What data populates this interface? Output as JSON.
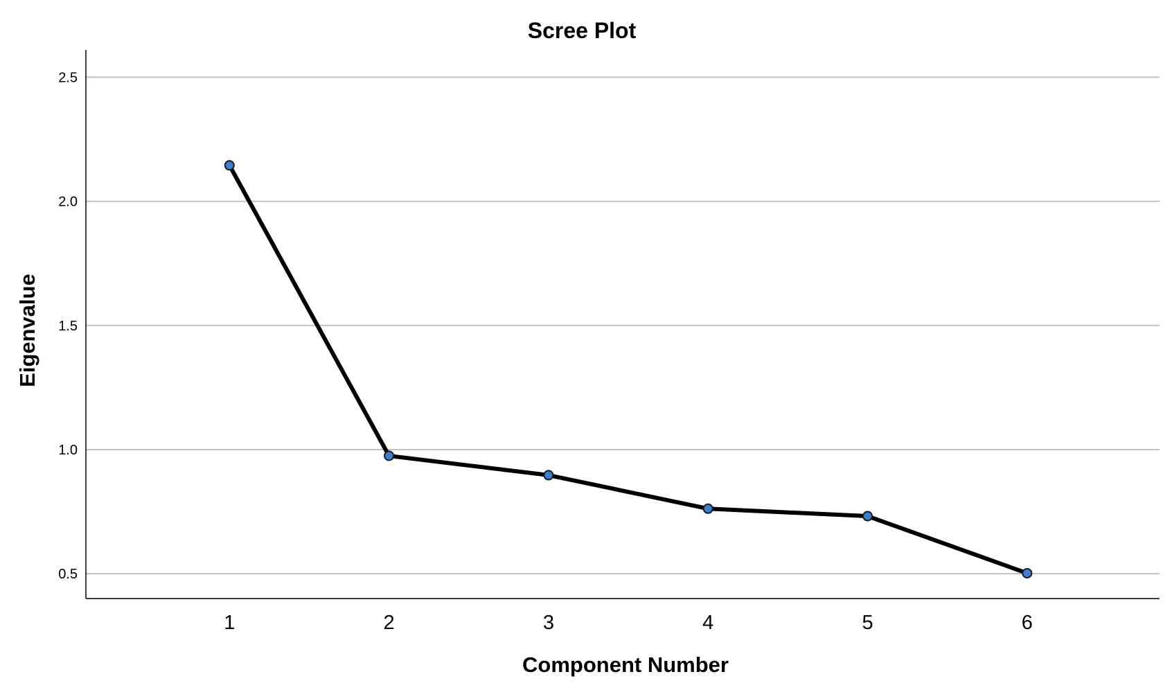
{
  "chart_data": {
    "type": "line",
    "title": "Scree Plot",
    "xlabel": "Component Number",
    "ylabel": "Eigenvalue",
    "x": [
      1,
      2,
      3,
      4,
      5,
      6
    ],
    "x_tick_labels": [
      "1",
      "2",
      "3",
      "4",
      "5",
      "6"
    ],
    "y_ticks": [
      0.5,
      1.0,
      1.5,
      2.0,
      2.5
    ],
    "y_tick_labels": [
      "0.5",
      "1.0",
      "1.5",
      "2.0",
      "2.5"
    ],
    "ylim": [
      0.4,
      2.61
    ],
    "xlim": [
      0.1,
      6.83
    ],
    "grid": "horizontal",
    "legend": "none",
    "series": [
      {
        "values": [
          2.145,
          0.975,
          0.897,
          0.762,
          0.732,
          0.502
        ]
      }
    ],
    "colors": {
      "line": "#000000",
      "marker_fill": "#3a80d0",
      "marker_stroke": "#1a1a1a",
      "grid": "#c0c0c0",
      "axis": "#000000"
    }
  }
}
